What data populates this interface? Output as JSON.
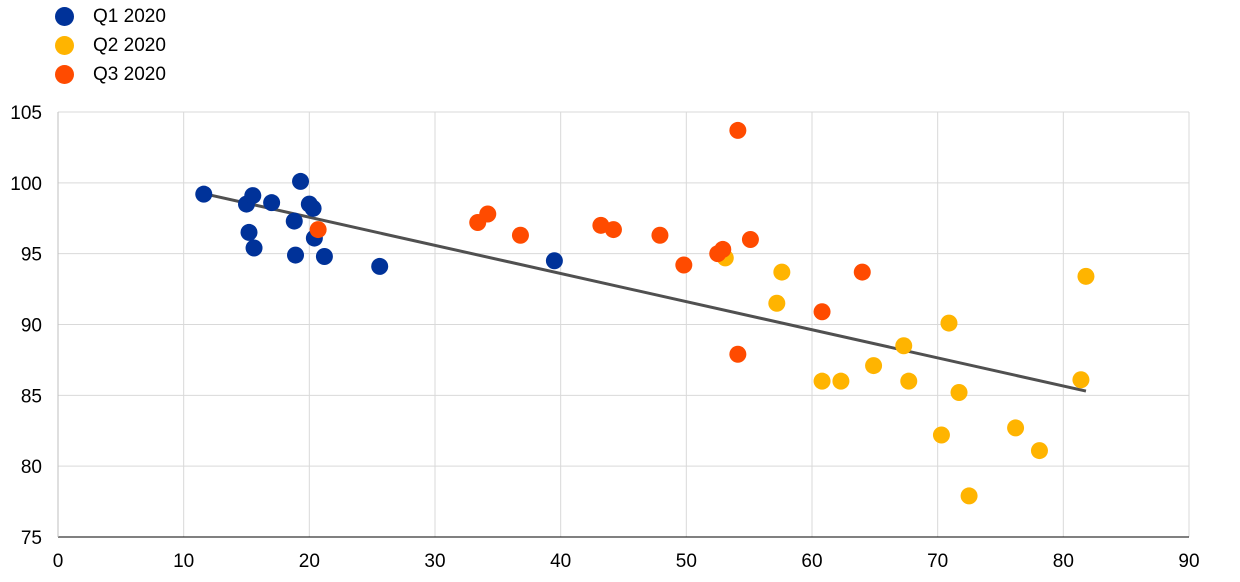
{
  "chart_data": {
    "type": "scatter",
    "xlim": [
      0,
      90
    ],
    "ylim": [
      75,
      105
    ],
    "x_ticks": [
      0,
      10,
      20,
      30,
      40,
      50,
      60,
      70,
      80,
      90
    ],
    "y_ticks": [
      75,
      80,
      85,
      90,
      95,
      100,
      105
    ],
    "grid": "vertical and horizontal",
    "legend_position": "top-left",
    "series": [
      {
        "name": "Q1 2020",
        "color": "#003299",
        "points": [
          [
            11.6,
            99.2
          ],
          [
            15.0,
            98.5
          ],
          [
            15.5,
            99.1
          ],
          [
            17.0,
            98.6
          ],
          [
            15.2,
            96.5
          ],
          [
            15.6,
            95.4
          ],
          [
            18.8,
            97.3
          ],
          [
            19.3,
            100.1
          ],
          [
            20.0,
            98.5
          ],
          [
            20.3,
            98.2
          ],
          [
            20.4,
            96.1
          ],
          [
            18.9,
            94.9
          ],
          [
            21.2,
            94.8
          ],
          [
            25.6,
            94.1
          ],
          [
            39.5,
            94.5
          ]
        ]
      },
      {
        "name": "Q2 2020",
        "color": "#FFB400",
        "points": [
          [
            53.1,
            94.7
          ],
          [
            57.6,
            93.7
          ],
          [
            57.2,
            91.5
          ],
          [
            60.8,
            86.0
          ],
          [
            62.3,
            86.0
          ],
          [
            64.9,
            87.1
          ],
          [
            67.3,
            88.5
          ],
          [
            67.7,
            86.0
          ],
          [
            70.9,
            90.1
          ],
          [
            71.7,
            85.2
          ],
          [
            70.3,
            82.2
          ],
          [
            72.5,
            77.9
          ],
          [
            76.2,
            82.7
          ],
          [
            78.1,
            81.1
          ],
          [
            81.4,
            86.1
          ],
          [
            81.8,
            93.4
          ]
        ]
      },
      {
        "name": "Q3 2020",
        "color": "#FF4B00",
        "points": [
          [
            20.7,
            96.7
          ],
          [
            33.4,
            97.2
          ],
          [
            34.2,
            97.8
          ],
          [
            36.8,
            96.3
          ],
          [
            43.2,
            97.0
          ],
          [
            44.2,
            96.7
          ],
          [
            47.9,
            96.3
          ],
          [
            49.8,
            94.2
          ],
          [
            52.5,
            95.0
          ],
          [
            52.9,
            95.3
          ],
          [
            55.1,
            96.0
          ],
          [
            54.1,
            103.7
          ],
          [
            54.1,
            87.9
          ],
          [
            60.8,
            90.9
          ],
          [
            64.0,
            93.7
          ]
        ]
      }
    ],
    "trendline": {
      "color": "#505050",
      "from": [
        11.8,
        99.2
      ],
      "to": [
        81.8,
        85.3
      ]
    }
  }
}
